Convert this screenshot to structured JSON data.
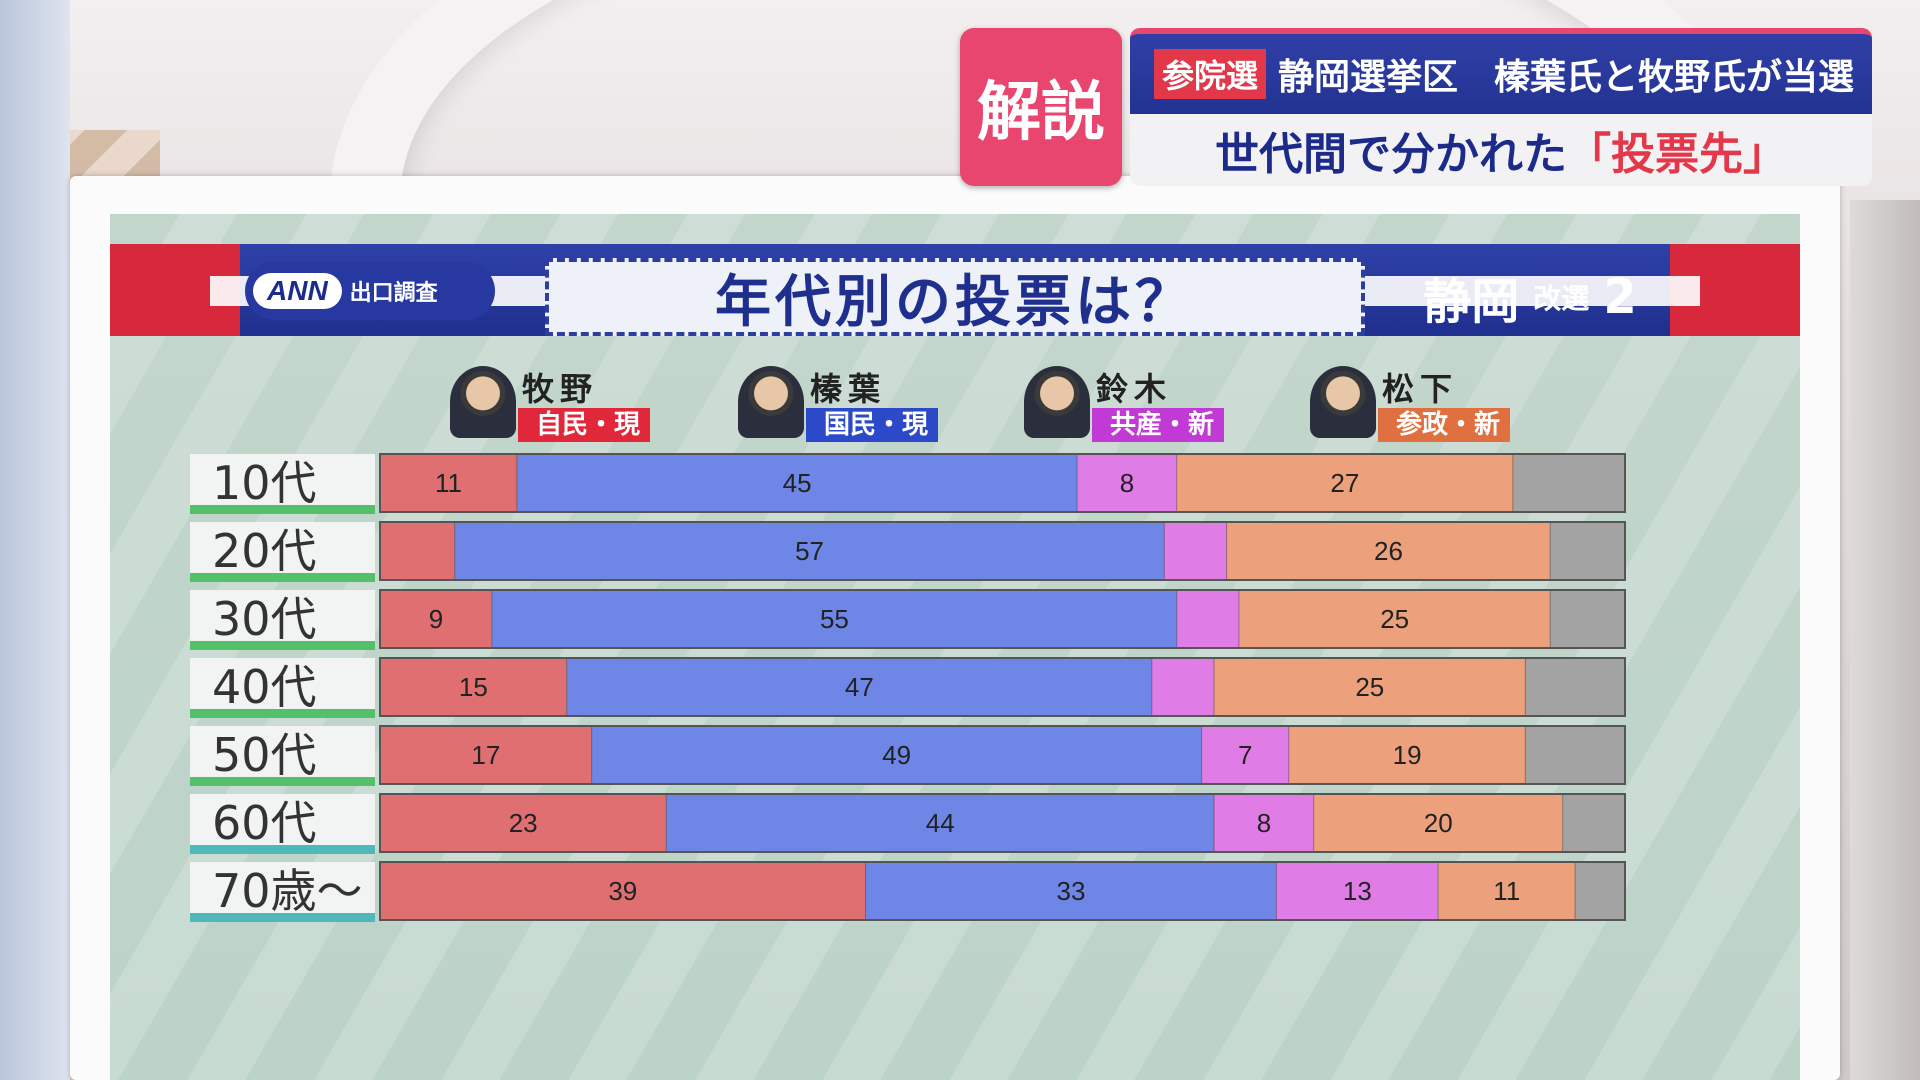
{
  "banner": {
    "badge": "解説",
    "tag": "参院選",
    "headline": "静岡選挙区　榛葉氏と牧野氏が当選",
    "subheadline_main": "世代間で分かれた",
    "subheadline_em": "「投票先」"
  },
  "board": {
    "source_logo": "ANN",
    "source_label": "出口調査",
    "title": "年代別の投票は？",
    "region": "静岡",
    "seats_label": "改選",
    "seats_num": "2"
  },
  "candidates": [
    {
      "name": "牧野",
      "party": "自民・現",
      "color": "#e0283a"
    },
    {
      "name": "榛葉",
      "party": "国民・現",
      "color": "#2b49c8"
    },
    {
      "name": "鈴木",
      "party": "共産・新",
      "color": "#c23ad6"
    },
    {
      "name": "松下",
      "party": "参政・新",
      "color": "#e07040"
    }
  ],
  "colors": {
    "makino": "#e06f72",
    "shinba": "#6e86e6",
    "suzuki": "#e07ce6",
    "matsushita": "#eca07c",
    "other": "#a3a3a3",
    "label_green": "#55c06a",
    "label_teal": "#4fb8b8"
  },
  "chart_data": {
    "type": "bar",
    "orientation": "horizontal-stacked-100",
    "title": "年代別の投票は？",
    "categories": [
      "10代",
      "20代",
      "30代",
      "40代",
      "50代",
      "60代",
      "70歳～"
    ],
    "series": [
      {
        "name": "牧野",
        "values": [
          11,
          6,
          9,
          15,
          17,
          23,
          39
        ],
        "labels": [
          "11",
          "",
          "9",
          "15",
          "17",
          "23",
          "39"
        ]
      },
      {
        "name": "榛葉",
        "values": [
          45,
          57,
          55,
          47,
          49,
          44,
          33
        ],
        "labels": [
          "45",
          "57",
          "55",
          "47",
          "49",
          "44",
          "33"
        ]
      },
      {
        "name": "鈴木",
        "values": [
          8,
          5,
          5,
          5,
          7,
          8,
          13
        ],
        "labels": [
          "8",
          "",
          "",
          "",
          "7",
          "8",
          "13"
        ]
      },
      {
        "name": "松下",
        "values": [
          27,
          26,
          25,
          25,
          19,
          20,
          11
        ],
        "labels": [
          "27",
          "26",
          "25",
          "25",
          "19",
          "20",
          "11"
        ]
      },
      {
        "values": [
          9,
          6,
          6,
          8,
          8,
          5,
          4
        ],
        "labels": [
          "",
          "",
          "",
          "",
          "",
          "",
          ""
        ]
      }
    ],
    "xlim": [
      0,
      100
    ]
  }
}
